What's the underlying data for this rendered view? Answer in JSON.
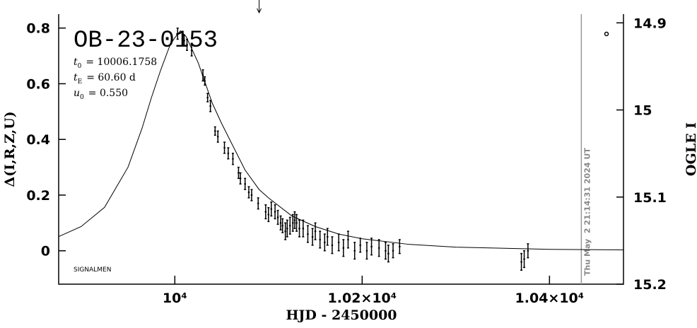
{
  "chart_data": {
    "type": "line",
    "title": "OB-23-0153",
    "params": [
      {
        "symbol": "t",
        "sub": "0",
        "text": "= 10006.1758"
      },
      {
        "symbol": "t",
        "sub": "E",
        "text": "= 60.60 d"
      },
      {
        "symbol": "u",
        "sub": "0",
        "text": "= 0.550"
      }
    ],
    "credit": "SIGNALMEN",
    "timestamp": "Thu May  2 21:14:31 2024 UT",
    "timestamp_x": 10434,
    "arrow_x": 10090,
    "xlabel": "HJD - 2450000",
    "ylabel": "Δ(I,R,Z,U)",
    "y2label": "OGLE I",
    "xlim": [
      9876,
      10479
    ],
    "ylim": [
      -0.12,
      0.85
    ],
    "y2lim": [
      15.2,
      14.89
    ],
    "xticks": [
      {
        "value": 10000,
        "label": "10⁴"
      },
      {
        "value": 10200,
        "label": "1.02×10⁴"
      },
      {
        "value": 10400,
        "label": "1.04×10⁴"
      }
    ],
    "yticks": [
      0,
      0.2,
      0.4,
      0.6,
      0.8
    ],
    "y2ticks": [
      14.9,
      15,
      15.1,
      15.2
    ],
    "model": {
      "color": "#000000",
      "x": [
        9876,
        9900,
        9925,
        9950,
        9965,
        9975,
        9985,
        9995,
        10000,
        10006,
        10012,
        10025,
        10040,
        10050,
        10063,
        10075,
        10090,
        10100,
        10125,
        10150,
        10175,
        10200,
        10250,
        10300,
        10400,
        10479
      ],
      "values": [
        0.051,
        0.087,
        0.156,
        0.3,
        0.44,
        0.55,
        0.65,
        0.74,
        0.765,
        0.79,
        0.77,
        0.675,
        0.53,
        0.457,
        0.37,
        0.29,
        0.22,
        0.19,
        0.125,
        0.087,
        0.06,
        0.043,
        0.023,
        0.013,
        0.005,
        0.003
      ]
    },
    "series": [
      {
        "name": "OGLE",
        "color": "#000000",
        "x": [
          10003,
          10010,
          10013,
          10018,
          10030,
          10032,
          10035,
          10038,
          10043,
          10046,
          10053,
          10057,
          10062,
          10068,
          10070,
          10075,
          10079,
          10082,
          10089,
          10097,
          10100,
          10103,
          10107,
          10110,
          10113,
          10115,
          10118,
          10120,
          10123,
          10126,
          10128,
          10130,
          10133,
          10137,
          10142,
          10147,
          10150,
          10155,
          10160,
          10163,
          10168,
          10175,
          10180,
          10185,
          10192,
          10198,
          10205,
          10210,
          10218,
          10225,
          10228,
          10233,
          10240,
          10370,
          10373,
          10377
        ],
        "values": [
          0.78,
          0.755,
          0.74,
          0.72,
          0.63,
          0.61,
          0.55,
          0.52,
          0.43,
          0.41,
          0.37,
          0.35,
          0.33,
          0.28,
          0.26,
          0.24,
          0.21,
          0.2,
          0.17,
          0.14,
          0.13,
          0.15,
          0.14,
          0.12,
          0.1,
          0.09,
          0.07,
          0.08,
          0.09,
          0.1,
          0.11,
          0.1,
          0.08,
          0.08,
          0.06,
          0.05,
          0.07,
          0.04,
          0.03,
          0.05,
          0.02,
          0.03,
          0.01,
          0.04,
          0,
          0.02,
          0,
          0.015,
          0.01,
          0,
          -0.01,
          0,
          0.015,
          -0.04,
          -0.03,
          0
        ],
        "errors": [
          0.02,
          0.02,
          0.02,
          0.02,
          0.02,
          0.015,
          0.015,
          0.02,
          0.015,
          0.02,
          0.02,
          0.02,
          0.02,
          0.02,
          0.02,
          0.02,
          0.02,
          0.02,
          0.02,
          0.025,
          0.025,
          0.025,
          0.025,
          0.025,
          0.025,
          0.025,
          0.03,
          0.03,
          0.03,
          0.03,
          0.03,
          0.03,
          0.03,
          0.03,
          0.03,
          0.03,
          0.03,
          0.03,
          0.03,
          0.03,
          0.03,
          0.03,
          0.03,
          0.03,
          0.03,
          0.025,
          0.03,
          0.03,
          0.03,
          0.03,
          0.03,
          0.025,
          0.025,
          0.03,
          0.03,
          0.025
        ]
      }
    ]
  }
}
